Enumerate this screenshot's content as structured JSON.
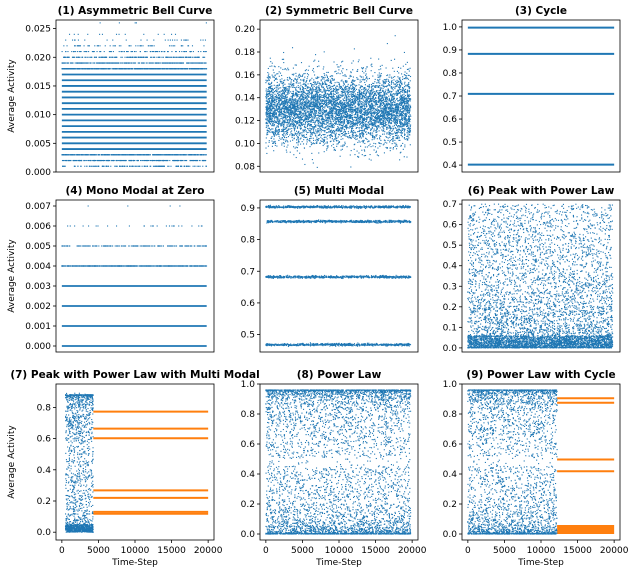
{
  "figure": {
    "colors": {
      "blue": "#1f77b4",
      "orange": "#ff7f0e"
    }
  },
  "chart_data": [
    {
      "title": "(1) Asymmetric Bell Curve",
      "type": "scatter",
      "ylabel": "Average Activity",
      "xlabel": "",
      "ylim": [
        0,
        0.0265
      ],
      "yticks": [
        "0.000",
        "0.005",
        "0.010",
        "0.015",
        "0.020",
        "0.025"
      ],
      "ytick_values": [
        0,
        0.005,
        0.01,
        0.015,
        0.02,
        0.025
      ],
      "xlim": [
        -800,
        20800
      ],
      "xticks": [],
      "bands": [
        {
          "y": 0.001,
          "density": 0.15
        },
        {
          "y": 0.002,
          "density": 0.3
        },
        {
          "y": 0.003,
          "density": 0.5
        },
        {
          "y": 0.004,
          "density": 1
        },
        {
          "y": 0.005,
          "density": 1
        },
        {
          "y": 0.006,
          "density": 1
        },
        {
          "y": 0.007,
          "density": 1
        },
        {
          "y": 0.008,
          "density": 1
        },
        {
          "y": 0.009,
          "density": 1
        },
        {
          "y": 0.01,
          "density": 1
        },
        {
          "y": 0.011,
          "density": 1
        },
        {
          "y": 0.012,
          "density": 1
        },
        {
          "y": 0.013,
          "density": 1
        },
        {
          "y": 0.014,
          "density": 1
        },
        {
          "y": 0.015,
          "density": 1
        },
        {
          "y": 0.016,
          "density": 1
        },
        {
          "y": 0.017,
          "density": 1
        },
        {
          "y": 0.018,
          "density": 0.6
        },
        {
          "y": 0.019,
          "density": 0.35
        },
        {
          "y": 0.02,
          "density": 0.2
        },
        {
          "y": 0.021,
          "density": 0.1
        },
        {
          "y": 0.022,
          "density": 0.06
        },
        {
          "y": 0.023,
          "density": 0.03
        },
        {
          "y": 0.024,
          "density": 0.015
        },
        {
          "y": 0.026,
          "density": 0.005
        }
      ]
    },
    {
      "title": "(2) Symmetric Bell Curve",
      "type": "scatter",
      "ylabel": "",
      "xlabel": "",
      "ylim": [
        0.075,
        0.208
      ],
      "yticks": [
        "0.08",
        "0.10",
        "0.12",
        "0.14",
        "0.16",
        "0.18",
        "0.20"
      ],
      "ytick_values": [
        0.08,
        0.1,
        0.12,
        0.14,
        0.16,
        0.18,
        0.2
      ],
      "xlim": [
        -800,
        20800
      ],
      "xticks": [],
      "distribution": {
        "kind": "normal",
        "mean": 0.13,
        "sd": 0.015,
        "n": 6000
      }
    },
    {
      "title": "(3) Cycle",
      "type": "line",
      "ylabel": "",
      "xlabel": "",
      "ylim": [
        0.37,
        1.03
      ],
      "yticks": [
        "0.4",
        "0.5",
        "0.6",
        "0.7",
        "0.8",
        "0.9",
        "1.0"
      ],
      "ytick_values": [
        0.4,
        0.5,
        0.6,
        0.7,
        0.8,
        0.9,
        1.0
      ],
      "xlim": [
        -800,
        20800
      ],
      "xticks": [],
      "levels": [
        0.402,
        0.709,
        0.883,
        0.997
      ]
    },
    {
      "title": "(4) Mono Modal at Zero",
      "type": "scatter",
      "ylabel": "Average Activity",
      "xlabel": "",
      "ylim": [
        -0.0003,
        0.0073
      ],
      "yticks": [
        "0.000",
        "0.001",
        "0.002",
        "0.003",
        "0.004",
        "0.005",
        "0.006",
        "0.007"
      ],
      "ytick_values": [
        0,
        0.001,
        0.002,
        0.003,
        0.004,
        0.005,
        0.006,
        0.007
      ],
      "xlim": [
        -800,
        20800
      ],
      "xticks": [],
      "bands": [
        {
          "y": 0.0,
          "density": 1
        },
        {
          "y": 0.001,
          "density": 1
        },
        {
          "y": 0.002,
          "density": 1
        },
        {
          "y": 0.003,
          "density": 1
        },
        {
          "y": 0.004,
          "density": 0.8
        },
        {
          "y": 0.005,
          "density": 0.2
        },
        {
          "y": 0.006,
          "density": 0.03
        },
        {
          "y": 0.007,
          "density": 0.004
        }
      ]
    },
    {
      "title": "(5) Multi Modal",
      "type": "scatter",
      "ylabel": "",
      "xlabel": "",
      "ylim": [
        0.445,
        0.925
      ],
      "yticks": [
        "0.5",
        "0.6",
        "0.7",
        "0.8",
        "0.9"
      ],
      "ytick_values": [
        0.5,
        0.6,
        0.7,
        0.8,
        0.9
      ],
      "xlim": [
        -800,
        20800
      ],
      "xticks": [],
      "modes": [
        0.468,
        0.682,
        0.857,
        0.903
      ]
    },
    {
      "title": "(6) Peak with Power Law",
      "type": "scatter",
      "ylabel": "",
      "xlabel": "",
      "ylim": [
        -0.02,
        0.72
      ],
      "yticks": [
        "0.0",
        "0.1",
        "0.2",
        "0.3",
        "0.4",
        "0.5",
        "0.6",
        "0.7"
      ],
      "ytick_values": [
        0,
        0.1,
        0.2,
        0.3,
        0.4,
        0.5,
        0.6,
        0.7
      ],
      "xlim": [
        -800,
        20800
      ],
      "xticks": [],
      "distribution": {
        "kind": "power",
        "max": 0.7,
        "exponent": 1.8,
        "n": 6000
      }
    },
    {
      "title": "(7) Peak with Power Law with Multi Modal",
      "type": "scatter",
      "ylabel": "Average Activity",
      "xlabel": "Time-Step",
      "ylim": [
        -0.05,
        0.95
      ],
      "yticks": [
        "0.0",
        "0.2",
        "0.4",
        "0.6",
        "0.8"
      ],
      "ytick_values": [
        0,
        0.2,
        0.4,
        0.6,
        0.8
      ],
      "xlim": [
        -800,
        20800
      ],
      "xticks": [
        "0",
        "5000",
        "10000",
        "15000",
        "20000"
      ],
      "xtick_values": [
        0,
        5000,
        10000,
        15000,
        20000
      ],
      "blue_segment": {
        "x": [
          500,
          4300
        ],
        "max": 0.9,
        "exponent": 1.3,
        "n": 1800
      },
      "orange_levels": [
        {
          "y": 0.773,
          "x": [
            4300,
            20000
          ]
        },
        {
          "y": 0.664,
          "x": [
            4300,
            20000
          ]
        },
        {
          "y": 0.602,
          "x": [
            4300,
            20000
          ]
        },
        {
          "y": 0.268,
          "x": [
            4300,
            20000
          ]
        },
        {
          "y": 0.22,
          "x": [
            4300,
            20000
          ]
        },
        {
          "y": 0.13,
          "x": [
            4300,
            20000
          ]
        },
        {
          "y": 0.118,
          "x": [
            4300,
            20000
          ]
        }
      ]
    },
    {
      "title": "(8) Power Law",
      "type": "scatter",
      "ylabel": "",
      "xlabel": "Time-Step",
      "ylim": [
        -0.04,
        1.0
      ],
      "yticks": [
        "0.0",
        "0.2",
        "0.4",
        "0.6",
        "0.8",
        "1.0"
      ],
      "ytick_values": [
        0,
        0.2,
        0.4,
        0.6,
        0.8,
        1.0
      ],
      "xlim": [
        -800,
        20800
      ],
      "xticks": [
        "0",
        "5000",
        "10000",
        "15000",
        "20000"
      ],
      "xtick_values": [
        0,
        5000,
        10000,
        15000,
        20000
      ],
      "distribution": {
        "kind": "ushape",
        "n": 5000
      }
    },
    {
      "title": "(9) Power Law with Cycle",
      "type": "scatter",
      "ylabel": "",
      "xlabel": "Time-Step",
      "ylim": [
        -0.04,
        1.0
      ],
      "yticks": [
        "0.0",
        "0.2",
        "0.4",
        "0.6",
        "0.8",
        "1.0"
      ],
      "ytick_values": [
        0,
        0.2,
        0.4,
        0.6,
        0.8,
        1.0
      ],
      "xlim": [
        -800,
        20800
      ],
      "xticks": [
        "0",
        "5000",
        "10000",
        "15000",
        "20000"
      ],
      "xtick_values": [
        0,
        5000,
        10000,
        15000,
        20000
      ],
      "blue_segment": {
        "x": [
          0,
          12200
        ],
        "kind": "ushape",
        "n": 3200
      },
      "orange_levels": [
        {
          "y": 0.905,
          "x": [
            12200,
            20000
          ]
        },
        {
          "y": 0.875,
          "x": [
            12200,
            20000
          ]
        },
        {
          "y": 0.497,
          "x": [
            12200,
            20000
          ]
        },
        {
          "y": 0.418,
          "x": [
            12200,
            20000
          ]
        }
      ],
      "orange_fill": {
        "y": [
          0.0,
          0.06
        ],
        "x": [
          12200,
          20000
        ]
      }
    }
  ]
}
